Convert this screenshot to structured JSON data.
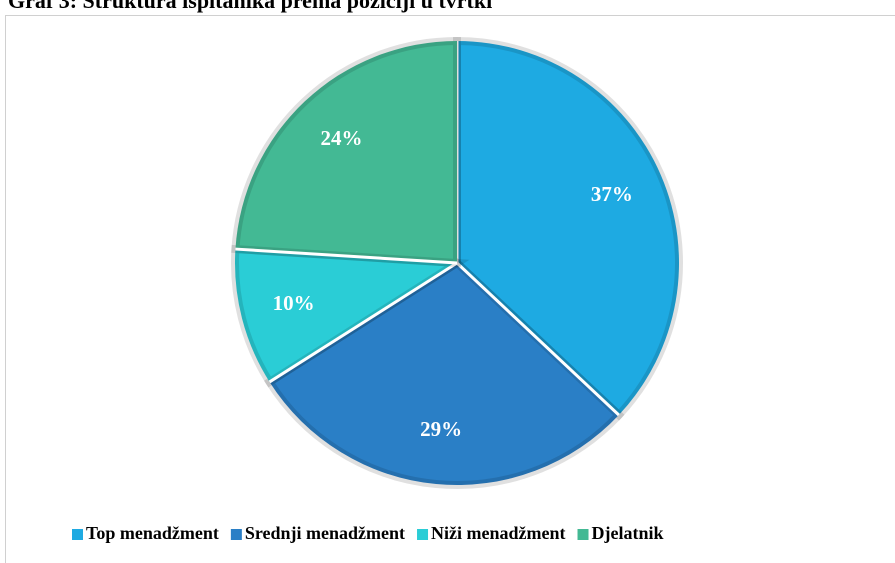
{
  "chart_data": {
    "type": "pie",
    "title": "Graf 3: Struktura ispitanika prema poziciji u tvrtki",
    "categories": [
      "Top menadžment",
      "Srednji menadžment",
      "Niži menadžment",
      "Djelatnik"
    ],
    "values": [
      37,
      29,
      10,
      24
    ],
    "value_labels": [
      "37%",
      "29%",
      "10%",
      "24%"
    ],
    "colors": [
      "#1eaae2",
      "#2a7fc6",
      "#2acdd6",
      "#43b994"
    ],
    "legend": "bottom"
  }
}
